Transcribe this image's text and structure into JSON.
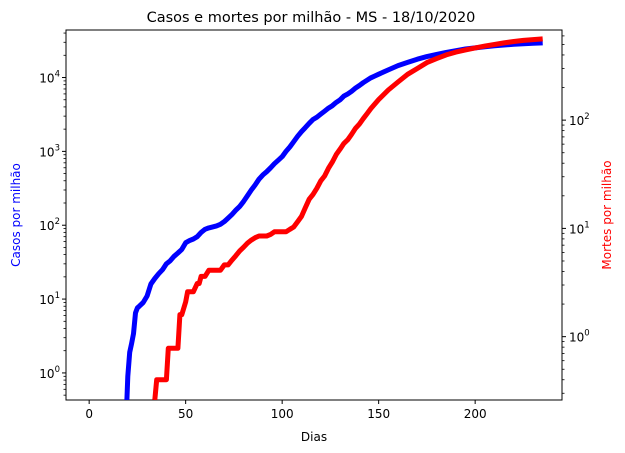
{
  "chart_data": {
    "type": "line",
    "title": "Casos e mortes por milhão - MS - 18/10/2020",
    "xlabel": "Dias",
    "xlim": [
      -12,
      245
    ],
    "x_ticks": [
      0,
      50,
      100,
      150,
      200
    ],
    "y_left": {
      "label": "Casos por milhão",
      "scale": "log",
      "lim": [
        0.43,
        44000
      ],
      "ticks": [
        {
          "value": 1,
          "mant": "10",
          "exp": "0"
        },
        {
          "value": 10,
          "mant": "10",
          "exp": "1"
        },
        {
          "value": 100,
          "mant": "10",
          "exp": "2"
        },
        {
          "value": 1000,
          "mant": "10",
          "exp": "3"
        },
        {
          "value": 10000,
          "mant": "10",
          "exp": "4"
        }
      ]
    },
    "y_right": {
      "label": "Mortes por milhão",
      "scale": "log",
      "lim": [
        0.26,
        680
      ],
      "ticks": [
        {
          "value": 1,
          "mant": "10",
          "exp": "0"
        },
        {
          "value": 10,
          "mant": "10",
          "exp": "1"
        },
        {
          "value": 100,
          "mant": "10",
          "exp": "2"
        }
      ]
    },
    "series": [
      {
        "axis": "left",
        "color": "#0000ff",
        "x": [
          19.5,
          20,
          21,
          22,
          23,
          24,
          25,
          26,
          28,
          30,
          32,
          34,
          36,
          38,
          40,
          42,
          44,
          46,
          48,
          50,
          52,
          54,
          56,
          58,
          60,
          62,
          64,
          66,
          68,
          70,
          72,
          74,
          76,
          78,
          80,
          82,
          84,
          86,
          88,
          90,
          92,
          94,
          96,
          98,
          100,
          102,
          104,
          106,
          108,
          110,
          112,
          114,
          116,
          118,
          120,
          122,
          124,
          126,
          128,
          130,
          132,
          134,
          136,
          138,
          140,
          142,
          144,
          146,
          148,
          150,
          155,
          160,
          165,
          170,
          175,
          180,
          185,
          190,
          195,
          200,
          205,
          210,
          215,
          220,
          225,
          230,
          235
        ],
        "y": [
          0.4,
          0.9,
          1.9,
          2.5,
          3.4,
          6.5,
          7.6,
          8,
          9,
          11,
          16,
          19,
          22,
          25,
          30,
          33,
          38,
          42,
          47,
          58,
          62,
          65,
          70,
          80,
          88,
          92,
          95,
          98,
          103,
          112,
          125,
          140,
          160,
          180,
          210,
          250,
          300,
          350,
          420,
          480,
          530,
          600,
          680,
          760,
          850,
          1000,
          1150,
          1350,
          1600,
          1850,
          2100,
          2400,
          2700,
          2900,
          3200,
          3500,
          3850,
          4150,
          4600,
          5000,
          5600,
          6000,
          6500,
          7200,
          7800,
          8500,
          9200,
          9900,
          10500,
          11100,
          12700,
          14500,
          16000,
          17700,
          19200,
          20500,
          21900,
          23100,
          24300,
          25200,
          26100,
          26900,
          27600,
          28200,
          28700,
          29100,
          29400
        ]
      },
      {
        "axis": "right",
        "color": "#ff0000",
        "x": [
          34,
          35,
          36,
          38,
          40,
          41,
          42,
          44,
          46,
          47,
          48,
          50,
          51,
          52,
          54,
          56,
          57,
          58,
          60,
          62,
          64,
          65,
          66,
          68,
          70,
          72,
          74,
          76,
          78,
          80,
          82,
          84,
          86,
          88,
          90,
          92,
          94,
          96,
          98,
          100,
          102,
          104,
          106,
          108,
          110,
          112,
          114,
          116,
          118,
          120,
          122,
          124,
          126,
          128,
          130,
          132,
          134,
          136,
          138,
          140,
          142,
          144,
          146,
          148,
          150,
          155,
          160,
          165,
          170,
          175,
          180,
          185,
          190,
          195,
          200,
          205,
          210,
          215,
          220,
          225,
          230,
          235
        ],
        "y": [
          0.26,
          0.4,
          0.4,
          0.4,
          0.4,
          0.78,
          0.78,
          0.78,
          0.78,
          1.6,
          1.6,
          2.1,
          2.6,
          2.6,
          2.6,
          3.1,
          3.1,
          3.6,
          3.6,
          4.1,
          4.1,
          4.1,
          4.1,
          4.1,
          4.6,
          4.6,
          5.1,
          5.6,
          6.2,
          6.7,
          7.3,
          7.8,
          8.2,
          8.5,
          8.5,
          8.5,
          8.8,
          9.3,
          9.3,
          9.3,
          9.3,
          9.8,
          10.3,
          11.5,
          12.9,
          15.5,
          18.6,
          20.6,
          23.5,
          27.5,
          30.5,
          36,
          41,
          48,
          54,
          61,
          66,
          74,
          84,
          92,
          103,
          115,
          128,
          141,
          155,
          190,
          225,
          265,
          300,
          340,
          370,
          400,
          425,
          445,
          465,
          483,
          500,
          517,
          532,
          545,
          555,
          563
        ]
      }
    ]
  }
}
